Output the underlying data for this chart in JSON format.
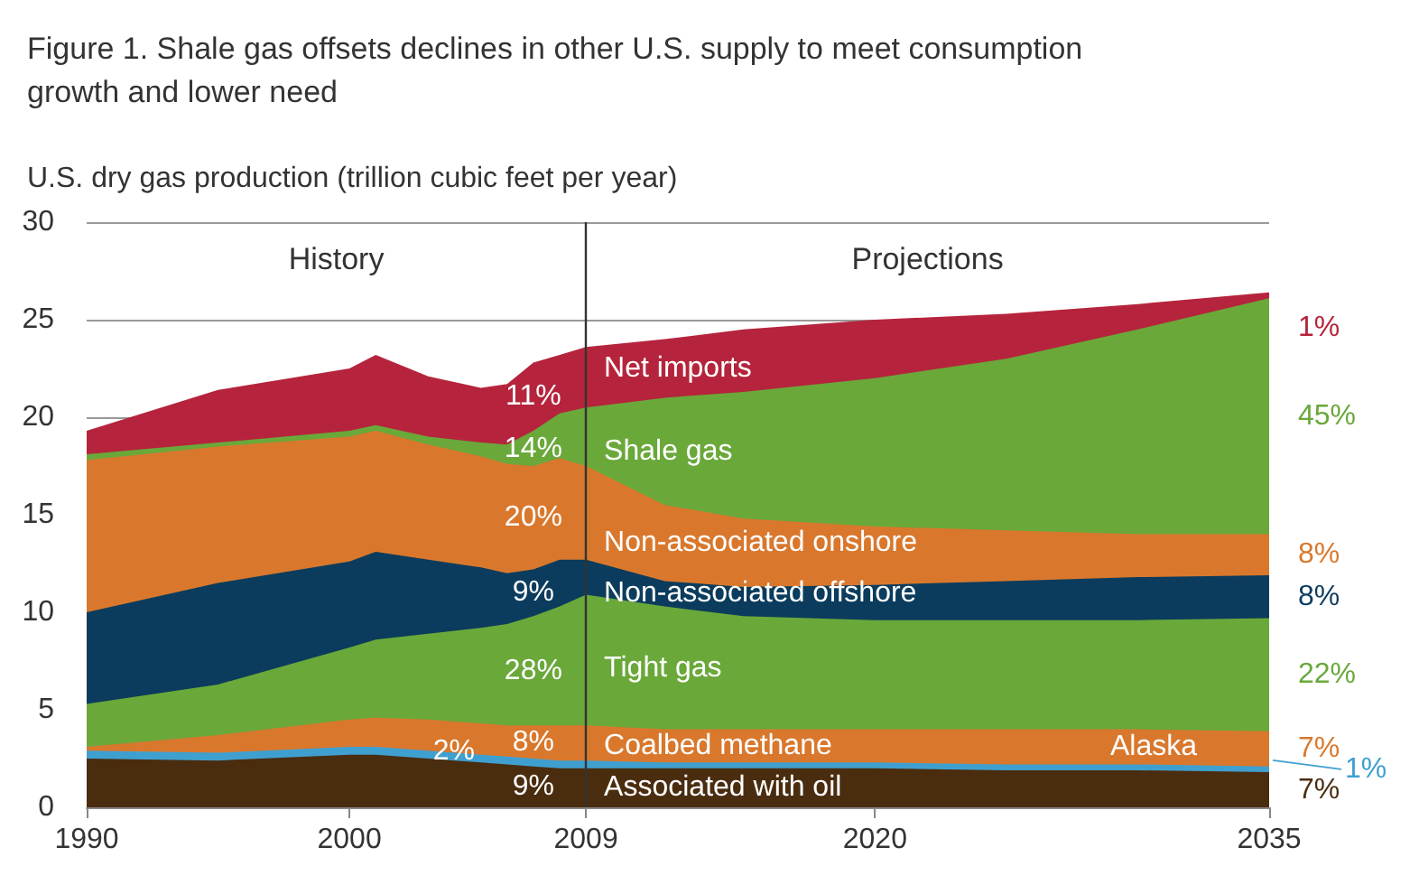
{
  "chart_data": {
    "type": "area",
    "stacked": true,
    "title": "Figure 1. Shale gas offsets declines in other U.S. supply to meet consumption growth and lower need",
    "ylabel": "U.S. dry gas production (trillion cubic feet per year)",
    "x": [
      1990,
      1995,
      2000,
      2001,
      2003,
      2005,
      2006,
      2007,
      2008,
      2009,
      2012,
      2015,
      2020,
      2025,
      2030,
      2035
    ],
    "xlim": [
      1990,
      2035
    ],
    "xticks": [
      1990,
      2000,
      2009,
      2020,
      2035
    ],
    "ylim": [
      0,
      30
    ],
    "yticks": [
      0,
      5,
      10,
      15,
      20,
      25,
      30
    ],
    "grid": "y",
    "legend": false,
    "series": [
      {
        "name": "Associated with oil",
        "color": "#4a2c0f",
        "values": [
          2.5,
          2.4,
          2.7,
          2.7,
          2.5,
          2.3,
          2.2,
          2.1,
          2.0,
          2.0,
          2.0,
          2.0,
          2.0,
          1.9,
          1.9,
          1.8
        ]
      },
      {
        "name": "Alaska",
        "color": "#3fa0d0",
        "values": [
          0.4,
          0.4,
          0.4,
          0.4,
          0.4,
          0.4,
          0.4,
          0.4,
          0.4,
          0.4,
          0.3,
          0.3,
          0.3,
          0.3,
          0.3,
          0.3
        ]
      },
      {
        "name": "Coalbed methane",
        "color": "#d9782d",
        "values": [
          0.2,
          0.9,
          1.4,
          1.5,
          1.6,
          1.6,
          1.6,
          1.7,
          1.8,
          1.8,
          1.7,
          1.7,
          1.7,
          1.8,
          1.8,
          1.8
        ]
      },
      {
        "name": "Tight gas",
        "color": "#6aa83a",
        "values": [
          2.2,
          2.6,
          3.7,
          4.0,
          4.4,
          4.9,
          5.2,
          5.6,
          6.1,
          6.7,
          6.3,
          5.8,
          5.6,
          5.6,
          5.6,
          5.8
        ]
      },
      {
        "name": "Non-associated offshore",
        "color": "#0b3c5d",
        "values": [
          4.7,
          5.2,
          4.4,
          4.5,
          3.8,
          3.1,
          2.6,
          2.4,
          2.4,
          1.8,
          1.3,
          1.5,
          1.8,
          2.0,
          2.2,
          2.2
        ]
      },
      {
        "name": "Non-associated onshore",
        "color": "#d9782d",
        "values": [
          7.8,
          7.0,
          6.4,
          6.2,
          5.9,
          5.7,
          5.6,
          5.3,
          5.2,
          4.8,
          3.9,
          3.5,
          3.0,
          2.6,
          2.2,
          2.1
        ]
      },
      {
        "name": "Shale gas",
        "color": "#6aa83a",
        "values": [
          0.3,
          0.2,
          0.3,
          0.3,
          0.4,
          0.7,
          1.0,
          1.8,
          2.3,
          3.0,
          5.5,
          6.5,
          7.6,
          8.8,
          10.5,
          12.1
        ]
      },
      {
        "name": "Net imports",
        "color": "#b5243c",
        "values": [
          1.2,
          2.7,
          3.2,
          3.6,
          3.1,
          2.8,
          3.1,
          3.5,
          3.0,
          3.1,
          3.0,
          3.2,
          3.0,
          2.3,
          1.3,
          0.3
        ]
      }
    ],
    "ref_lines": [
      {
        "axis": "x",
        "value": 2009,
        "color": "#333333"
      }
    ],
    "annotations": [
      "History",
      "Projections",
      "9%",
      "2%",
      "8%",
      "28%",
      "9%",
      "20%",
      "14%",
      "11%",
      "7%",
      "1%",
      "7%",
      "22%",
      "8%",
      "8%",
      "45%",
      "1%"
    ]
  }
}
